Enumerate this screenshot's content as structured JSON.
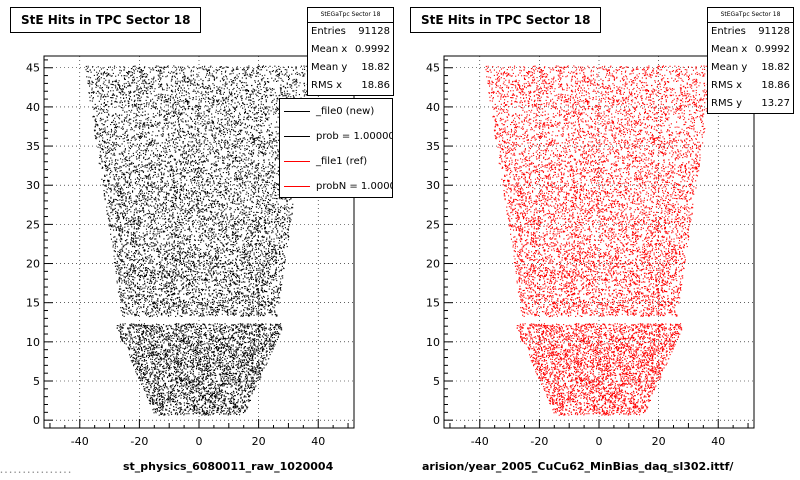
{
  "footer": "• • • • • • • • • • • • • • • •",
  "chart_data": [
    {
      "type": "scatter",
      "title": "StE Hits in TPC Sector 18",
      "stats": {
        "name": "StEGaTpc Sector 18",
        "rows": [
          {
            "label": "Entries",
            "value": "91128"
          },
          {
            "label": "Mean x",
            "value": "0.9992"
          },
          {
            "label": "Mean y",
            "value": "18.82"
          },
          {
            "label": "RMS x",
            "value": "18.86"
          }
        ]
      },
      "legend": [
        {
          "label": "_file0 (new)",
          "color": "#000000"
        },
        {
          "label": "prob = 1.000000",
          "color": "#000000"
        },
        {
          "label": "_file1 (ref)",
          "color": "#ff0000"
        },
        {
          "label": "probN = 1.000000",
          "color": "#ff0000"
        }
      ],
      "xlabel": "st_physics_6080011_raw_1020004",
      "marker_color": "#000000",
      "xlim": [
        -52,
        52
      ],
      "ylim": [
        -1,
        46.5
      ],
      "xticks": [
        -40,
        -20,
        0,
        20,
        40
      ],
      "yticks": [
        0,
        5,
        10,
        15,
        20,
        25,
        30,
        35,
        40,
        45
      ],
      "grid": true
    },
    {
      "type": "scatter",
      "title": "StE Hits in TPC Sector 18",
      "stats": {
        "name": "StEGaTpc Sector 18",
        "rows": [
          {
            "label": "Entries",
            "value": "91128"
          },
          {
            "label": "Mean x",
            "value": "0.9992"
          },
          {
            "label": "Mean y",
            "value": "18.82"
          },
          {
            "label": "RMS x",
            "value": "18.86"
          },
          {
            "label": "RMS y",
            "value": "13.27"
          }
        ]
      },
      "xlabel": "arision/year_2005_CuCu62_MinBias_daq_sl302.ittf/",
      "marker_color": "#ff0000",
      "xlim": [
        -52,
        52
      ],
      "ylim": [
        -1,
        46.5
      ],
      "xticks": [
        -40,
        -20,
        0,
        20,
        40
      ],
      "yticks": [
        0,
        5,
        10,
        15,
        20,
        25,
        30,
        35,
        40,
        45
      ],
      "grid": true
    }
  ]
}
